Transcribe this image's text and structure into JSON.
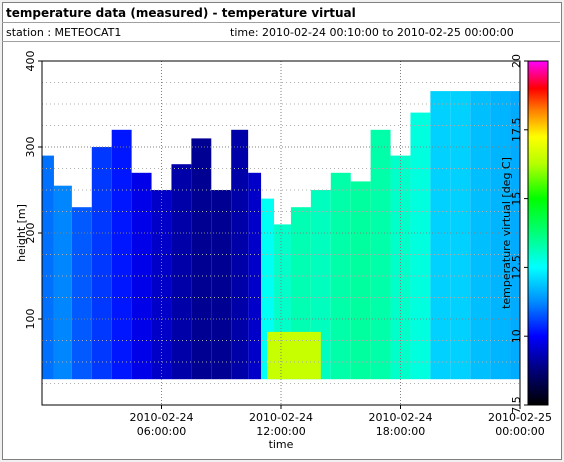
{
  "header": {
    "title": "temperature data (measured) - temperature virtual",
    "station": "station : METEOCAT1",
    "timerange": "time: 2010-02-24 00:10:00 to 2010-02-25 00:00:00"
  },
  "chart_data": {
    "type": "heatmap",
    "title": "temperature data (measured) - temperature virtual",
    "xlabel": "time",
    "ylabel": "height [m]",
    "colorbar_label": "temperature virtual [deg C]",
    "xlim": [
      "2010-02-24 00:10:00",
      "2010-02-25 00:00:00"
    ],
    "ylim": [
      0,
      400
    ],
    "x_ticks": [
      {
        "line1": "2010-02-24",
        "line2": "06:00:00",
        "t": 6
      },
      {
        "line1": "2010-02-24",
        "line2": "12:00:00",
        "t": 12
      },
      {
        "line1": "2010-02-24",
        "line2": "18:00:00",
        "t": 18
      },
      {
        "line1": "2010-02-25",
        "line2": "00:00:00",
        "t": 24
      }
    ],
    "y_ticks": [
      100,
      200,
      300,
      400
    ],
    "colorbar": {
      "range": [
        7.5,
        20
      ],
      "ticks": [
        "7.5",
        "10",
        "12.5",
        "15",
        "17.5",
        "20"
      ]
    },
    "grid": true,
    "height_range": [
      30,
      365
    ],
    "columns": [
      {
        "t": 0.2,
        "top": 290,
        "temp": 11.0
      },
      {
        "t": 1.0,
        "top": 255,
        "temp": 11.2
      },
      {
        "t": 2.0,
        "top": 230,
        "temp": 10.8
      },
      {
        "t": 3.0,
        "top": 300,
        "temp": 10.5
      },
      {
        "t": 4.0,
        "top": 320,
        "temp": 10.2
      },
      {
        "t": 5.0,
        "top": 270,
        "temp": 9.8
      },
      {
        "t": 6.0,
        "top": 250,
        "temp": 9.5
      },
      {
        "t": 7.0,
        "top": 280,
        "temp": 9.2
      },
      {
        "t": 8.0,
        "top": 310,
        "temp": 9.0
      },
      {
        "t": 9.0,
        "top": 250,
        "temp": 9.0
      },
      {
        "t": 10.0,
        "top": 320,
        "temp": 9.2
      },
      {
        "t": 10.7,
        "top": 270,
        "temp": 9.5
      },
      {
        "t": 11.3,
        "top": 240,
        "temp": 12.6
      },
      {
        "t": 12.0,
        "top": 210,
        "temp": 13.0
      },
      {
        "t": 13.0,
        "top": 230,
        "temp": 13.2
      },
      {
        "t": 14.0,
        "top": 250,
        "temp": 13.1
      },
      {
        "t": 15.0,
        "top": 270,
        "temp": 13.3
      },
      {
        "t": 16.0,
        "top": 260,
        "temp": 13.4
      },
      {
        "t": 17.0,
        "top": 320,
        "temp": 13.3
      },
      {
        "t": 18.0,
        "top": 290,
        "temp": 13.0
      },
      {
        "t": 19.0,
        "top": 340,
        "temp": 12.8
      },
      {
        "t": 20.0,
        "top": 365,
        "temp": 12.0
      },
      {
        "t": 21.0,
        "top": 365,
        "temp": 12.0
      },
      {
        "t": 22.0,
        "top": 365,
        "temp": 11.8
      },
      {
        "t": 23.0,
        "top": 365,
        "temp": 11.7
      },
      {
        "t": 24.0,
        "top": 365,
        "temp": 11.6
      }
    ],
    "warm_patch": {
      "t_start": 11.3,
      "t_end": 14.0,
      "h_start": 30,
      "h_end": 85,
      "temp": 16.5
    }
  }
}
